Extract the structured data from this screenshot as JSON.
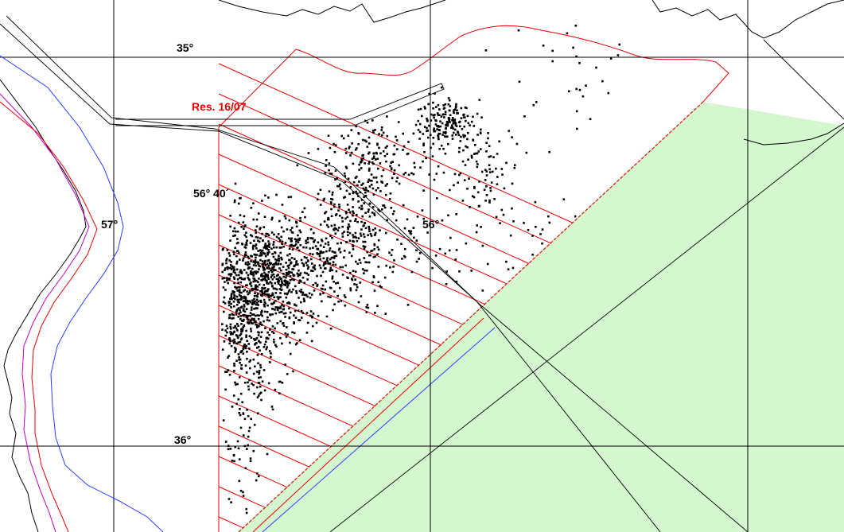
{
  "labels": {
    "lat_35": "35°",
    "lat_36": "36°",
    "lon_57": "57°",
    "lon_56": "56°",
    "lon_56_40": "56° 40´",
    "resolution": "Res. 16/07"
  },
  "colors": {
    "background": "#ffffff",
    "green_zone": "#d4f7d0",
    "red_lines": "#e60000",
    "blue_isobath": "#2a3cff",
    "magenta_isobath": "#c000c0",
    "grid": "#000000",
    "coast": "#000000",
    "points": "#000000"
  }
}
